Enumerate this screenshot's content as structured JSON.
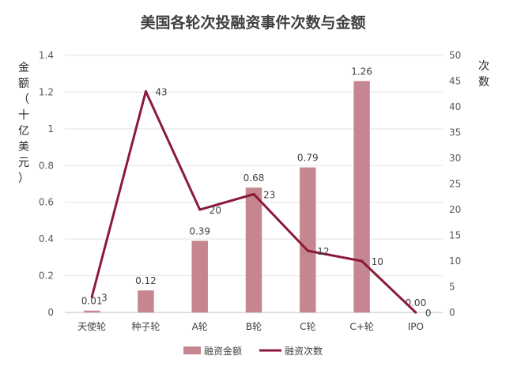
{
  "chart_data": {
    "type": "bar+line",
    "title": "美国各轮次投融资事件次数与金额",
    "categories": [
      "天使轮",
      "种子轮",
      "A轮",
      "B轮",
      "C轮",
      "C+轮",
      "IPO"
    ],
    "series": [
      {
        "name": "融资金额",
        "type": "bar",
        "axis": "left",
        "color": "#c5868f",
        "values": [
          0.01,
          0.12,
          0.39,
          0.68,
          0.79,
          1.26,
          0.0
        ],
        "labels": [
          "0.01",
          "0.12",
          "0.39",
          "0.68",
          "0.79",
          "1.26",
          "0.00"
        ]
      },
      {
        "name": "融资次数",
        "type": "line",
        "axis": "right",
        "color": "#8b1a3a",
        "values": [
          3,
          43,
          20,
          23,
          12,
          10,
          0
        ],
        "labels": [
          "3",
          "43",
          "20",
          "23",
          "12",
          "10",
          "0"
        ]
      }
    ],
    "ylabel_left": "金额（十亿美元）",
    "ylabel_left_chars": [
      "金",
      "额",
      "（",
      "十",
      "亿",
      "美",
      "元",
      "）"
    ],
    "ylabel_right": "次数",
    "ylabel_right_chars": [
      "次",
      "数"
    ],
    "ylim_left": [
      0,
      1.4
    ],
    "yticks_left": [
      "0",
      "0.2",
      "0.4",
      "0.6",
      "0.8",
      "1",
      "1.2",
      "1.4"
    ],
    "ylim_right": [
      0,
      50
    ],
    "yticks_right": [
      "0",
      "5",
      "10",
      "15",
      "20",
      "25",
      "30",
      "35",
      "40",
      "45",
      "50"
    ],
    "grid": true,
    "legend_position": "bottom"
  }
}
